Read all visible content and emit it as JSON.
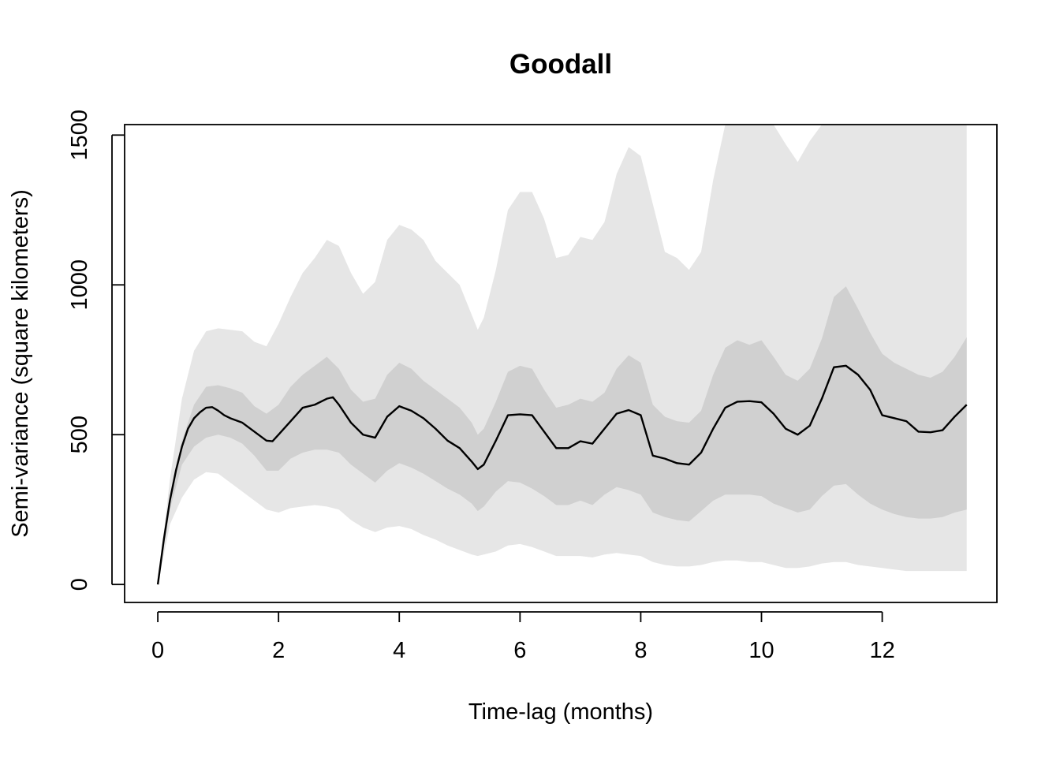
{
  "chart_data": {
    "type": "line",
    "title": "Goodall",
    "xlabel": "Time-lag (months)",
    "ylabel": "Semi-variance (square kilometers)",
    "xlim": [
      -0.55,
      13.9
    ],
    "ylim": [
      -60,
      1535
    ],
    "xticks": [
      0,
      2,
      4,
      6,
      8,
      10,
      12
    ],
    "yticks": [
      0,
      500,
      1000,
      1500
    ],
    "grid": false,
    "legend": "none",
    "colors": {
      "line": "#000000",
      "inner_band": "#d0d0d0",
      "outer_band": "#e6e6e6"
    },
    "series": [
      {
        "x": [
          0,
          0.1,
          0.2,
          0.3,
          0.4,
          0.5,
          0.6,
          0.7,
          0.8,
          0.9,
          1.0,
          1.1,
          1.2,
          1.4,
          1.6,
          1.8,
          1.9,
          2.0,
          2.2,
          2.4,
          2.6,
          2.8,
          2.9,
          3.0,
          3.2,
          3.4,
          3.6,
          3.8,
          4.0,
          4.2,
          4.4,
          4.6,
          4.8,
          5.0,
          5.2,
          5.3,
          5.4,
          5.6,
          5.8,
          6.0,
          6.2,
          6.4,
          6.6,
          6.8,
          7.0,
          7.2,
          7.4,
          7.6,
          7.8,
          8.0,
          8.2,
          8.4,
          8.6,
          8.8,
          9.0,
          9.2,
          9.4,
          9.6,
          9.8,
          10.0,
          10.2,
          10.4,
          10.6,
          10.8,
          11.0,
          11.2,
          11.4,
          11.6,
          11.8,
          12.0,
          12.2,
          12.4,
          12.6,
          12.8,
          13.0,
          13.2,
          13.4
        ],
        "values": [
          0,
          150,
          280,
          380,
          460,
          520,
          555,
          575,
          590,
          592,
          580,
          565,
          555,
          540,
          510,
          480,
          478,
          500,
          545,
          590,
          600,
          620,
          625,
          600,
          540,
          500,
          490,
          560,
          595,
          580,
          555,
          520,
          480,
          455,
          410,
          385,
          400,
          480,
          565,
          568,
          565,
          510,
          455,
          455,
          478,
          470,
          520,
          570,
          582,
          565,
          430,
          420,
          405,
          400,
          440,
          520,
          590,
          610,
          612,
          608,
          570,
          520,
          500,
          530,
          620,
          725,
          730,
          700,
          650,
          565,
          555,
          545,
          510,
          508,
          515,
          560,
          600
        ]
      }
    ],
    "inner_band_x": [
      0,
      0.2,
      0.4,
      0.6,
      0.8,
      1.0,
      1.2,
      1.4,
      1.6,
      1.8,
      2.0,
      2.2,
      2.4,
      2.6,
      2.8,
      3.0,
      3.2,
      3.4,
      3.6,
      3.8,
      4.0,
      4.2,
      4.4,
      4.6,
      4.8,
      5.0,
      5.2,
      5.3,
      5.4,
      5.6,
      5.8,
      6.0,
      6.2,
      6.4,
      6.6,
      6.8,
      7.0,
      7.2,
      7.4,
      7.6,
      7.8,
      8.0,
      8.2,
      8.4,
      8.6,
      8.8,
      9.0,
      9.2,
      9.4,
      9.6,
      9.8,
      10.0,
      10.2,
      10.4,
      10.6,
      10.8,
      11.0,
      11.2,
      11.4,
      11.6,
      11.8,
      12.0,
      12.2,
      12.4,
      12.6,
      12.8,
      13.0,
      13.2,
      13.4
    ],
    "inner_band_upper": [
      0,
      300,
      480,
      600,
      660,
      665,
      655,
      640,
      595,
      570,
      600,
      660,
      700,
      730,
      760,
      720,
      650,
      610,
      620,
      700,
      740,
      720,
      680,
      650,
      620,
      590,
      540,
      500,
      520,
      610,
      710,
      730,
      720,
      650,
      590,
      600,
      620,
      610,
      640,
      720,
      765,
      740,
      600,
      560,
      545,
      540,
      580,
      700,
      790,
      815,
      800,
      815,
      760,
      700,
      680,
      720,
      820,
      960,
      995,
      920,
      840,
      770,
      740,
      720,
      700,
      690,
      710,
      760,
      825
    ],
    "inner_band_lower": [
      0,
      250,
      400,
      460,
      490,
      500,
      490,
      470,
      430,
      380,
      380,
      420,
      440,
      450,
      450,
      440,
      400,
      370,
      340,
      380,
      405,
      390,
      370,
      345,
      320,
      300,
      270,
      245,
      260,
      310,
      345,
      340,
      320,
      295,
      265,
      265,
      280,
      265,
      300,
      325,
      315,
      300,
      240,
      225,
      215,
      210,
      245,
      280,
      300,
      300,
      300,
      295,
      270,
      255,
      240,
      250,
      295,
      330,
      335,
      300,
      270,
      250,
      235,
      225,
      220,
      220,
      225,
      240,
      250
    ],
    "outer_band_x": [
      0,
      0.2,
      0.4,
      0.6,
      0.8,
      1.0,
      1.2,
      1.4,
      1.6,
      1.8,
      2.0,
      2.2,
      2.4,
      2.6,
      2.8,
      3.0,
      3.2,
      3.4,
      3.6,
      3.8,
      4.0,
      4.2,
      4.4,
      4.6,
      4.8,
      5.0,
      5.2,
      5.3,
      5.4,
      5.6,
      5.8,
      6.0,
      6.2,
      6.4,
      6.6,
      6.8,
      7.0,
      7.2,
      7.4,
      7.6,
      7.8,
      8.0,
      8.2,
      8.4,
      8.6,
      8.8,
      9.0,
      9.2,
      9.4,
      9.6,
      9.8,
      10.0,
      10.2,
      10.4,
      10.6,
      10.8,
      11.0,
      11.2,
      11.4,
      11.6,
      11.8,
      12.0,
      12.2,
      12.4,
      12.6,
      12.8,
      13.0,
      13.2,
      13.4
    ],
    "outer_band_upper": [
      0,
      350,
      620,
      780,
      845,
      855,
      850,
      845,
      810,
      795,
      870,
      960,
      1040,
      1090,
      1150,
      1130,
      1040,
      970,
      1010,
      1150,
      1200,
      1185,
      1150,
      1080,
      1040,
      1000,
      900,
      850,
      890,
      1050,
      1250,
      1310,
      1310,
      1220,
      1090,
      1100,
      1160,
      1150,
      1210,
      1370,
      1460,
      1430,
      1270,
      1110,
      1090,
      1050,
      1110,
      1350,
      1535,
      1535,
      1535,
      1535,
      1535,
      1470,
      1410,
      1480,
      1535,
      1535,
      1535,
      1535,
      1535,
      1535,
      1535,
      1535,
      1535,
      1535,
      1535,
      1535,
      1535
    ],
    "outer_band_lower": [
      0,
      200,
      290,
      350,
      375,
      370,
      340,
      310,
      280,
      250,
      240,
      255,
      260,
      265,
      260,
      250,
      215,
      190,
      175,
      190,
      195,
      185,
      165,
      150,
      130,
      115,
      100,
      95,
      100,
      110,
      130,
      135,
      125,
      110,
      95,
      95,
      95,
      90,
      100,
      105,
      100,
      95,
      75,
      65,
      60,
      60,
      65,
      75,
      80,
      80,
      75,
      75,
      65,
      55,
      55,
      60,
      70,
      75,
      75,
      65,
      60,
      55,
      50,
      45,
      45,
      45,
      45,
      45,
      45
    ]
  }
}
